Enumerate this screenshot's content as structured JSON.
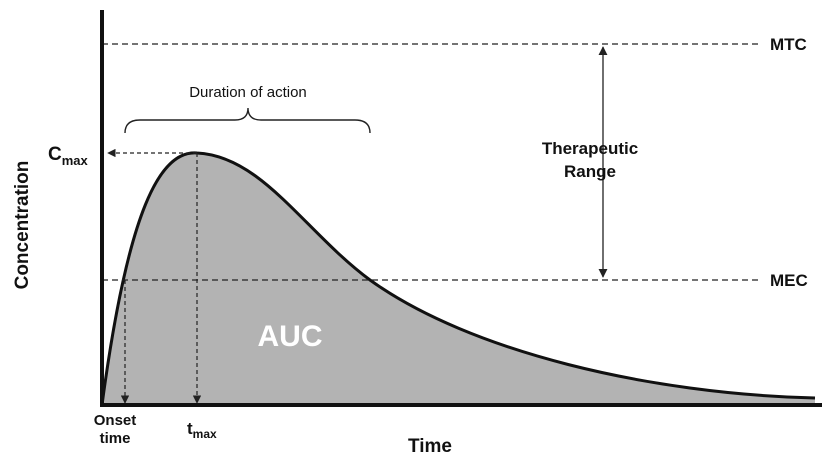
{
  "diagram": {
    "y_axis_label": "Concentration",
    "x_axis_label": "Time",
    "mtc": "MTC",
    "mec": "MEC",
    "therapeutic_range": [
      "Therapeutic",
      "Range"
    ],
    "duration": "Duration of action",
    "cmax": {
      "main": "C",
      "sub": "max"
    },
    "tmax": {
      "main": "t",
      "sub": "max"
    },
    "onset": [
      "Onset",
      "time"
    ],
    "auc": "AUC"
  }
}
